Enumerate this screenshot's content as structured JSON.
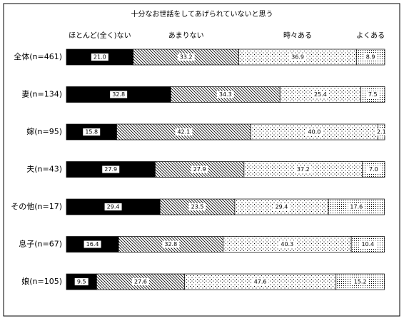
{
  "chart_data": {
    "type": "stacked-bar-horizontal",
    "title": "十分なお世話をしてあげられていないと思う",
    "categories": [
      "全体(n=461)",
      "妻(n=134)",
      "嫁(n=95)",
      "夫(n=43)",
      "その他(n=17)",
      "息子(n=67)",
      "娘(n=105)"
    ],
    "xlim": [
      0,
      100
    ],
    "series": [
      {
        "name": "ほとんど(全く)ない",
        "color": "#000000",
        "pattern": "solid",
        "values": [
          21.0,
          32.8,
          15.8,
          27.9,
          29.4,
          16.4,
          9.5
        ],
        "value_labels": [
          "21.0",
          "32.8",
          "15.8",
          "27.9",
          "29.4",
          "16.4",
          "9.5"
        ]
      },
      {
        "name": "あまりない",
        "color": "#000000",
        "pattern": "hatch",
        "values": [
          33.2,
          34.3,
          42.1,
          27.9,
          23.5,
          32.8,
          27.6
        ],
        "value_labels": [
          "33.2",
          "34.3",
          "42.1",
          "27.9",
          "23.5",
          "32.8",
          "27.6"
        ]
      },
      {
        "name": "時々ある",
        "color": "#000000",
        "pattern": "dots",
        "values": [
          36.9,
          25.4,
          40.0,
          37.2,
          29.4,
          40.3,
          47.6
        ],
        "value_labels": [
          "36.9",
          "25.4",
          "40.0",
          "37.2",
          "29.4",
          "40.3",
          "47.6"
        ]
      },
      {
        "name": "よくある",
        "color": "#000000",
        "pattern": "dense-dots",
        "values": [
          8.9,
          7.5,
          2.1,
          7.0,
          17.6,
          10.4,
          15.2
        ],
        "value_labels": [
          "8.9",
          "7.5",
          "2.1",
          "7.0",
          "17.6",
          "10.4",
          "15.2"
        ]
      }
    ]
  }
}
